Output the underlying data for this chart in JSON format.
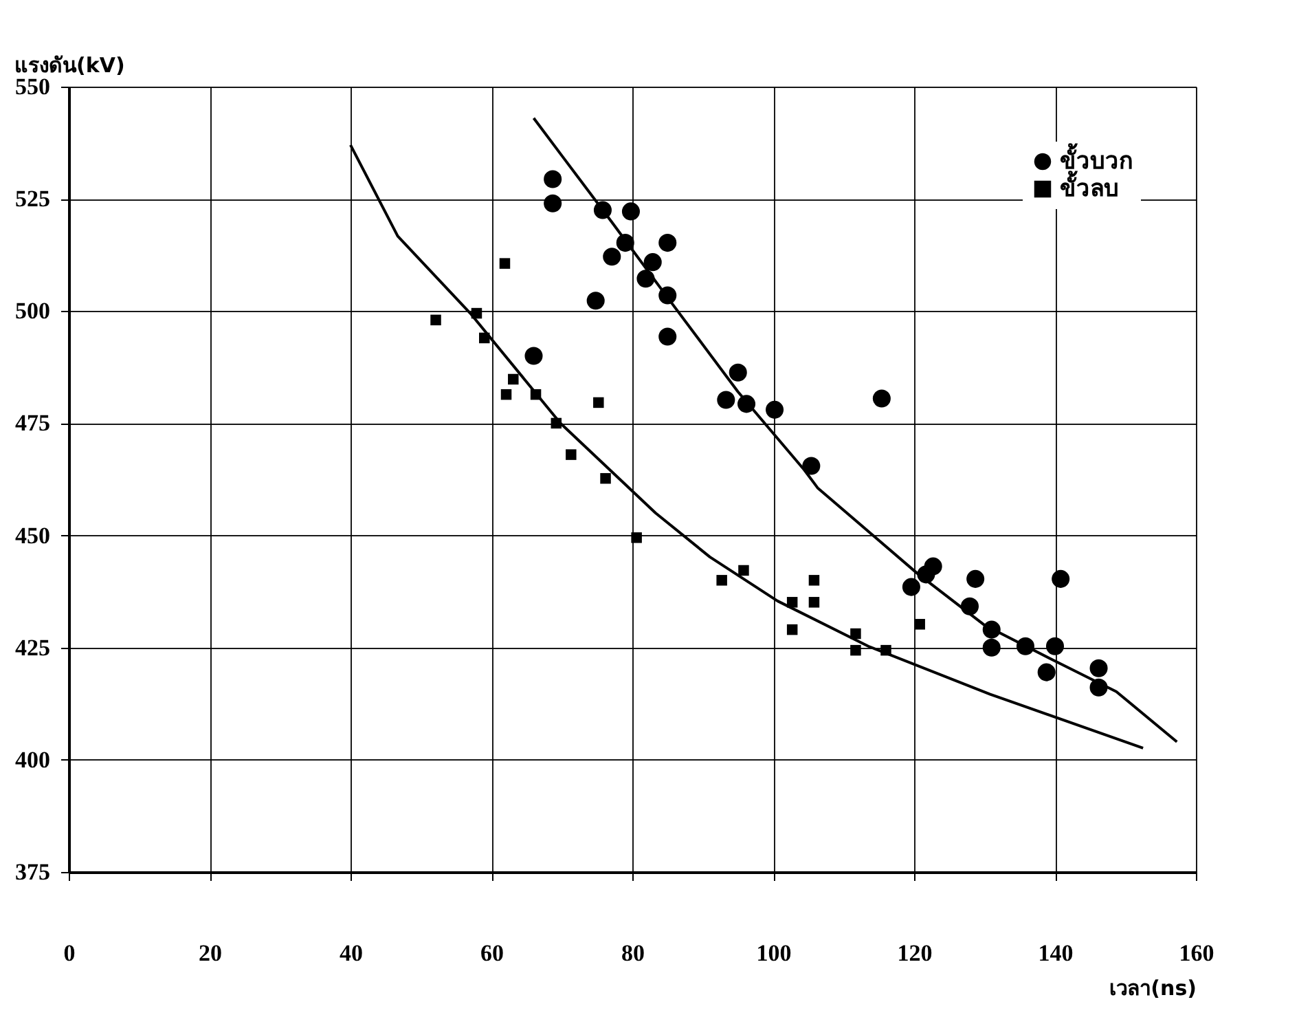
{
  "chart_data": {
    "type": "scatter",
    "xlabel": "เวลา(ns)",
    "ylabel": "แรงดัน(kV)",
    "xlim": [
      0,
      160
    ],
    "xticks": [
      0,
      20,
      40,
      60,
      80,
      100,
      120,
      140,
      160
    ],
    "ylim": [
      375,
      550
    ],
    "yticks": [
      375,
      400,
      425,
      450,
      475,
      500,
      525,
      550
    ],
    "grid": true,
    "legend": "top right",
    "series": [
      {
        "name": "ขั้วบวก",
        "color": "#000000",
        "marker": "circle",
        "x": [
          68.7,
          68.7,
          75.8,
          79.8,
          79.0,
          77.1,
          85.0,
          82.9,
          81.9,
          85.0,
          74.8,
          85.0,
          66.0,
          95.0,
          93.3,
          96.2,
          100.2,
          115.4,
          105.4,
          122.7,
          121.7,
          119.6,
          128.7,
          140.8,
          127.9,
          131.0,
          131.0,
          135.8,
          140.0,
          138.8,
          146.2,
          146.2
        ],
        "values": [
          529.4,
          524.0,
          522.5,
          522.2,
          515.2,
          512.1,
          515.2,
          510.9,
          507.2,
          503.5,
          502.3,
          494.3,
          490.0,
          486.3,
          480.2,
          479.3,
          478.0,
          480.5,
          465.5,
          443.1,
          441.3,
          438.5,
          440.3,
          440.3,
          434.2,
          429.0,
          425.0,
          425.3,
          425.3,
          419.5,
          420.4,
          416.1
        ]
      },
      {
        "name": "ขั้วลบ",
        "color": "#000000",
        "marker": "square",
        "x": [
          61.9,
          52.1,
          57.9,
          59.0,
          63.1,
          62.1,
          66.3,
          75.2,
          69.2,
          71.3,
          76.2,
          80.6,
          92.7,
          95.8,
          105.8,
          105.8,
          102.7,
          102.7,
          111.7,
          111.7,
          116.0,
          120.8
        ],
        "values": [
          510.6,
          498.0,
          499.5,
          494.0,
          484.8,
          481.4,
          481.4,
          479.6,
          475.0,
          468.0,
          462.7,
          449.5,
          440.0,
          442.2,
          440.0,
          435.1,
          435.1,
          429.0,
          428.1,
          424.4,
          424.4,
          430.2
        ]
      },
      {
        "type": "line",
        "color": "#000000",
        "marker": "none",
        "line_style": "solid",
        "x": [
          66.0,
          70.2,
          77.0,
          85.2,
          95.0,
          104.4,
          106.3,
          120.4,
          130.0,
          140.0,
          148.7,
          157.3
        ],
        "values": [
          543.0,
          534.2,
          520.0,
          502.6,
          482.0,
          464.6,
          460.6,
          441.6,
          430.0,
          422.0,
          415.2,
          404.0
        ]
      },
      {
        "type": "line",
        "color": "#000000",
        "marker": "none",
        "line_style": "solid",
        "x": [
          40.0,
          46.7,
          57.0,
          69.8,
          83.3,
          91.0,
          100.6,
          113.5,
          130.8,
          152.5
        ],
        "values": [
          537.0,
          516.7,
          499.5,
          475.0,
          455.0,
          445.2,
          435.4,
          425.3,
          414.6,
          402.6
        ]
      }
    ]
  }
}
